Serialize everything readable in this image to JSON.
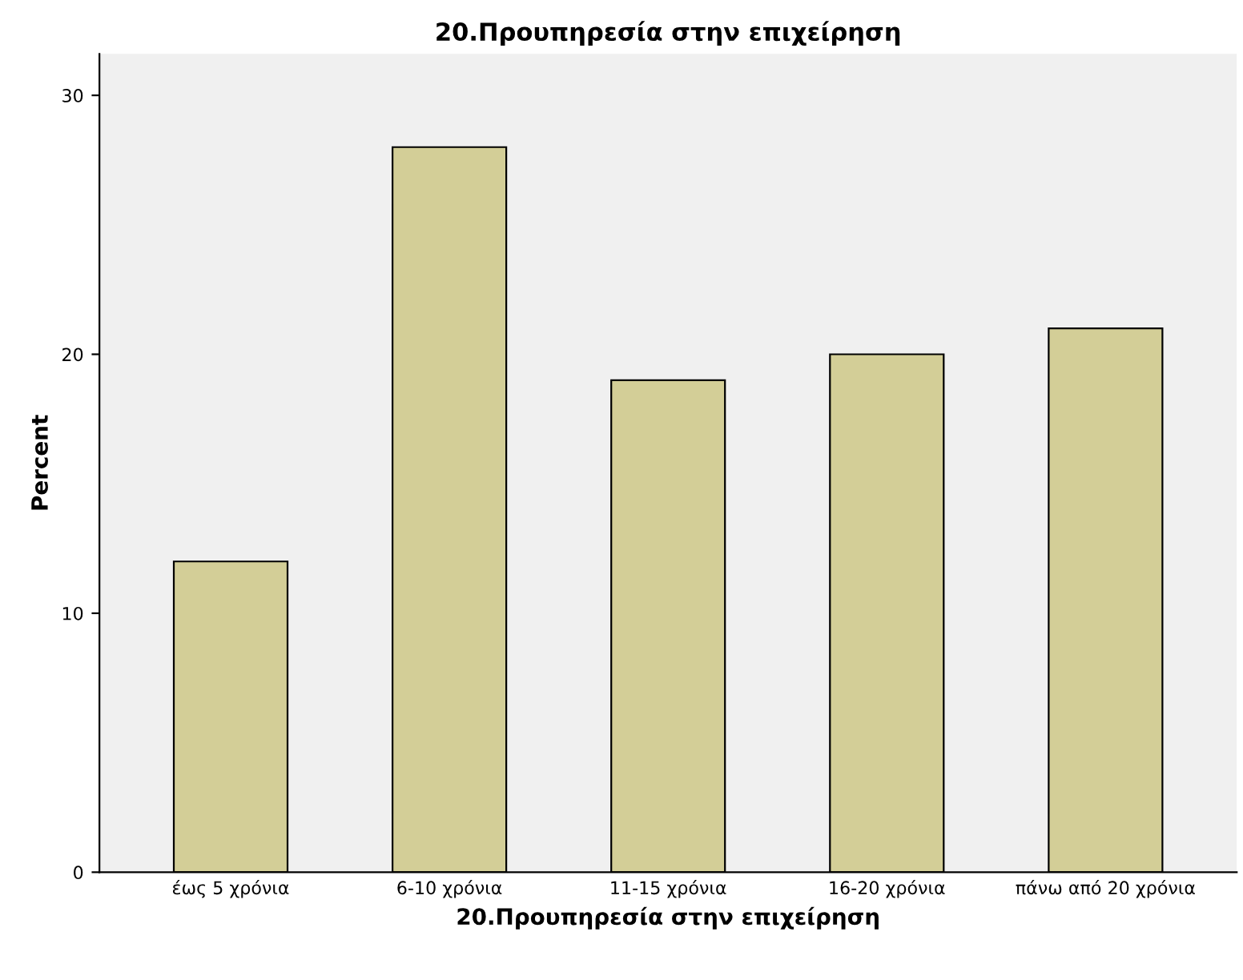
{
  "chart_data": {
    "type": "bar",
    "title": "20.Προυπηρεσία στην επιχείρηση",
    "xlabel": "20.Προυπηρεσία στην επιχείρηση",
    "ylabel": "Percent",
    "categories": [
      "έως 5 χρόνια",
      "6-10 χρόνια",
      "11-15 χρόνια",
      "16-20 χρόνια",
      "πάνω από 20 χρόνια"
    ],
    "values": [
      12,
      28,
      19,
      20,
      21
    ],
    "color": "#d3ce97",
    "ylim": [
      0,
      31.6
    ],
    "yticks": [
      0,
      10,
      20,
      30
    ],
    "grid": false,
    "legend": false
  }
}
